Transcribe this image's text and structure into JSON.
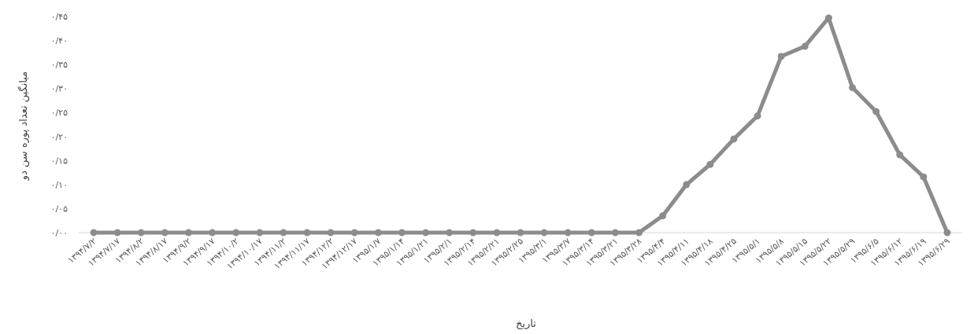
{
  "chart_data": {
    "type": "line",
    "title": "",
    "xlabel": "تاریخ",
    "ylabel": "میانگین تعداد پوره سن دو",
    "ylim": [
      0,
      0.45
    ],
    "grid": false,
    "legend": "none",
    "colors": {
      "line": "#8c8c8c",
      "axis": "#d9d9d9",
      "text": "#595959"
    },
    "y_ticks": [
      "۰/۰۰",
      "۰/۰۵",
      "۰/۱۰",
      "۰/۱۵",
      "۰/۲۰",
      "۰/۲۵",
      "۰/۳۰",
      "۰/۳۵",
      "۰/۴۰",
      "۰/۴۵"
    ],
    "y_tick_values": [
      0,
      0.05,
      0.1,
      0.15,
      0.2,
      0.25,
      0.3,
      0.35,
      0.4,
      0.45
    ],
    "categories": [
      "۱۳۹۴/۷/۲",
      "۱۳۹۴/۷/۱۷",
      "۱۳۹۴/۸/۲",
      "۱۳۹۴/۸/۱۷",
      "۱۳۹۴/۹/۲",
      "۱۳۹۴/۹/۱۷",
      "۱۳۹۴/۱۰/۲",
      "۱۳۹۴/۱۰/۱۷",
      "۱۳۹۴/۱۱/۲",
      "۱۳۹۴/۱۱/۱۷",
      "۱۳۹۴/۱۲/۲",
      "۱۳۹۴/۱۲/۱۷",
      "۱۳۹۵/۱/۷",
      "۱۳۹۵/۱/۱۴",
      "۱۳۹۵/۱/۲۱",
      "۱۳۹۵/۲/۱",
      "۱۳۹۵/۲/۱۴",
      "۱۳۹۵/۲/۲۱",
      "۱۳۹۵/۲/۲۵",
      "۱۳۹۵/۳/۱",
      "۱۳۹۵/۳/۷",
      "۱۳۹۵/۳/۱۴",
      "۱۳۹۵/۳/۲۱",
      "۱۳۹۵/۳/۲۸",
      "۱۳۹۵/۴/۴",
      "۱۳۹۵/۴/۱۱",
      "۱۳۹۵/۴/۱۸",
      "۱۳۹۵/۴/۲۵",
      "۱۳۹۵/۵/۱",
      "۱۳۹۵/۵/۸",
      "۱۳۹۵/۵/۱۵",
      "۱۳۹۵/۵/۲۲",
      "۱۳۹۵/۵/۲۹",
      "۱۳۹۵/۶/۵",
      "۱۳۹۵/۶/۱۲",
      "۱۳۹۵/۶/۱۹",
      "۱۳۹۵/۶/۲۹"
    ],
    "series": [
      {
        "values": [
          0,
          0,
          0,
          0,
          0,
          0,
          0,
          0,
          0,
          0,
          0,
          0,
          0,
          0,
          0,
          0,
          0,
          0,
          0,
          0,
          0,
          0,
          0,
          0,
          0.035,
          0.1,
          0.142,
          0.195,
          0.243,
          0.367,
          0.388,
          0.447,
          0.302,
          0.252,
          0.162,
          0.116,
          0
        ]
      }
    ]
  }
}
